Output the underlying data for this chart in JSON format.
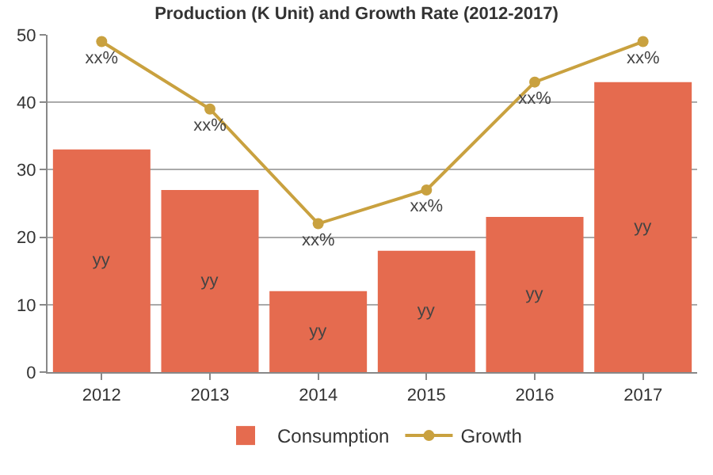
{
  "chart_data": {
    "type": "bar",
    "title": "Production (K Unit) and Growth Rate (2012-2017)",
    "categories": [
      "2012",
      "2013",
      "2014",
      "2015",
      "2016",
      "2017"
    ],
    "series": [
      {
        "name": "Consumption",
        "color": "#e56b4f",
        "values": [
          33,
          27,
          12,
          18,
          23,
          43
        ],
        "value_labels": [
          "yy",
          "yy",
          "yy",
          "yy",
          "yy",
          "yy"
        ]
      },
      {
        "name": "Growth",
        "type": "line",
        "color": "#c9a13f",
        "values": [
          49,
          39,
          22,
          27,
          43,
          49
        ],
        "value_labels": [
          "xx%",
          "xx%",
          "xx%",
          "xx%",
          "xx%",
          "xx%"
        ]
      }
    ],
    "ylim": [
      0,
      50
    ],
    "yticks": [
      0,
      10,
      20,
      30,
      40,
      50
    ],
    "grid": "y",
    "legend": "bottom",
    "marker": "circle",
    "line_style": "solid"
  }
}
